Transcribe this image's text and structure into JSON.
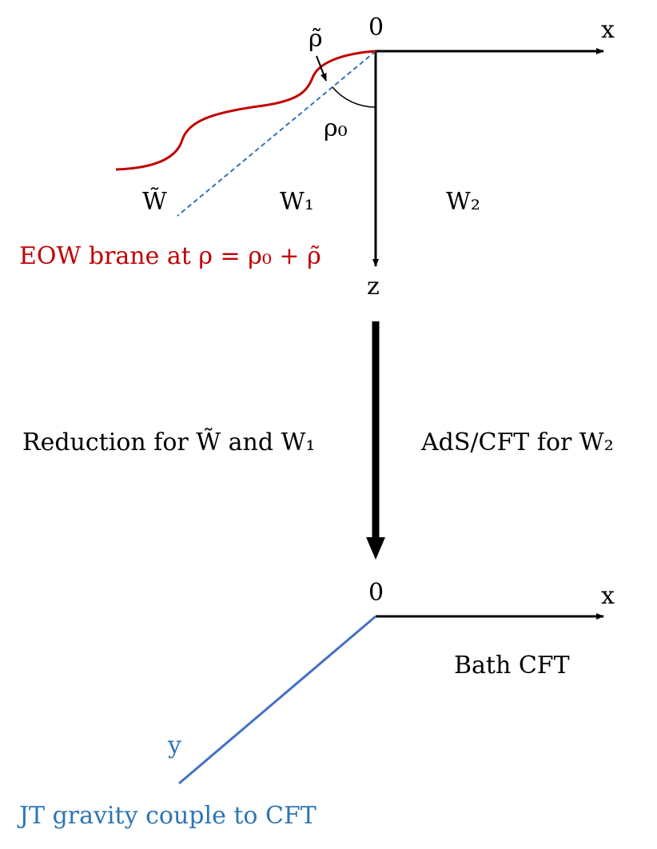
{
  "top_diagram": {
    "origin_label": "0",
    "x_label": "x",
    "z_label": "z",
    "rho_tilde_label": "ρ̃",
    "rho0_label": "ρ₀",
    "w_tilde_label": "W̃",
    "w1_label": "W₁",
    "w2_label": "W₂",
    "brane_label": "EOW brane at ρ = ρ₀ + ρ̃"
  },
  "middle": {
    "left_label": "Reduction for W̃ and W₁",
    "right_label": "AdS/CFT for W₂"
  },
  "bottom_diagram": {
    "origin_label": "0",
    "x_label": "x",
    "bath_label": "Bath CFT",
    "y_label": "y",
    "jt_label": "JT gravity couple to CFT"
  }
}
